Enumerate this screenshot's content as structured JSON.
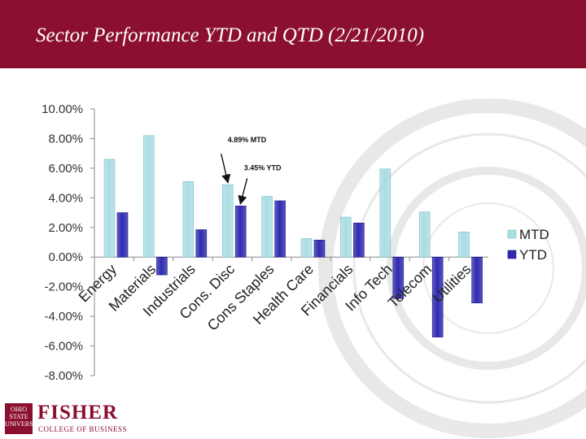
{
  "slide": {
    "title": "Sector Performance YTD and QTD (2/21/2010)",
    "accent_color": "#8b0f2e"
  },
  "chart_data": {
    "type": "bar",
    "title": "",
    "xlabel": "",
    "ylabel": "",
    "categories": [
      "Energy",
      "Materials",
      "Industrials",
      "Cons. Disc",
      "Cons Staples",
      "Health Care",
      "Financials",
      "Info Tech",
      "Telecom",
      "Utilities"
    ],
    "series": [
      {
        "name": "MTD",
        "color": "#a9dde3",
        "values": [
          6.6,
          8.2,
          5.1,
          4.89,
          4.1,
          1.25,
          2.7,
          5.95,
          3.05,
          1.7
        ]
      },
      {
        "name": "YTD",
        "color": "#2f2ab0",
        "values": [
          3.0,
          -1.2,
          1.85,
          3.45,
          3.8,
          1.15,
          2.3,
          -2.8,
          -5.4,
          -3.1
        ]
      }
    ],
    "ylim": [
      -8,
      10
    ],
    "yticks": [
      10,
      8,
      6,
      4,
      2,
      0,
      -2,
      -4,
      -6,
      -8
    ],
    "ytick_labels": [
      "10.00%",
      "8.00%",
      "6.00%",
      "4.00%",
      "2.00%",
      "0.00%",
      "-2.00%",
      "-4.00%",
      "-6.00%",
      "-8.00%"
    ],
    "grid": false,
    "legend_position": "right",
    "annotations": [
      {
        "text": "4.89% MTD",
        "category": "Cons. Disc",
        "series": "MTD"
      },
      {
        "text": "3.45% YTD",
        "category": "Cons. Disc",
        "series": "YTD"
      }
    ]
  },
  "logo": {
    "emblem_text": "OHIO STATE UNIVERSITY",
    "name": "FISHER",
    "subtitle": "COLLEGE OF BUSINESS"
  }
}
